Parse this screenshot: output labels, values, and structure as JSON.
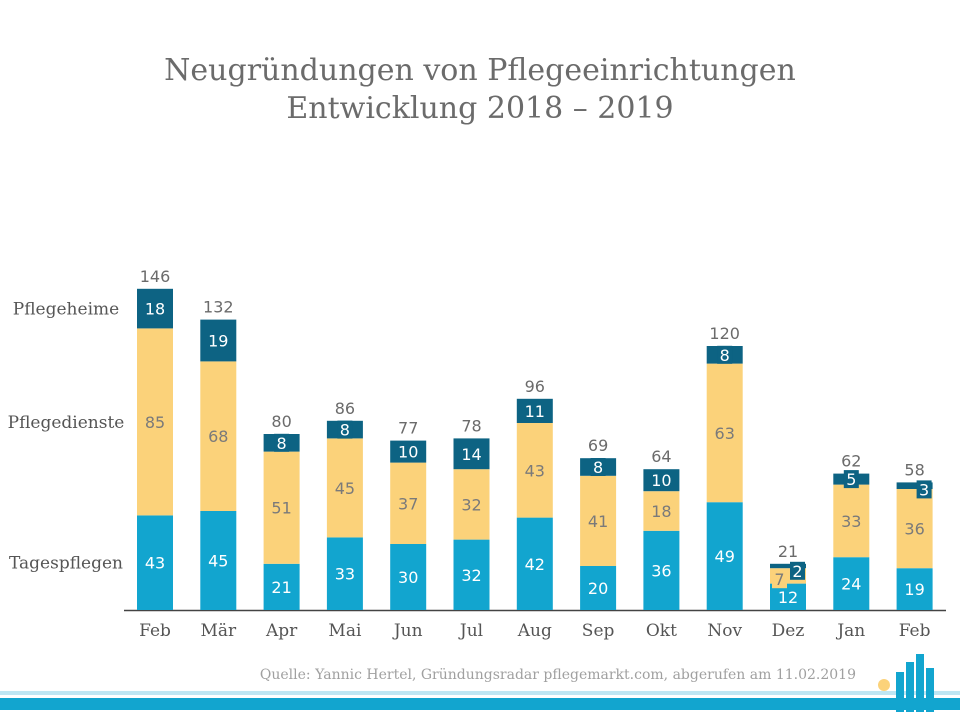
{
  "chart_data": {
    "type": "bar",
    "stacked": true,
    "title": "Neugründungen von Pflegeeinrichtungen",
    "subtitle": "Entwicklung 2018 – 2019",
    "categories": [
      "Feb",
      "Mär",
      "Apr",
      "Mai",
      "Jun",
      "Jul",
      "Aug",
      "Sep",
      "Okt",
      "Nov",
      "Dez",
      "Jan",
      "Feb"
    ],
    "series": [
      {
        "name": "Tagespflegen",
        "color": "#12a5cf",
        "label_color": "#ffffff",
        "values": [
          43,
          45,
          21,
          33,
          30,
          32,
          42,
          20,
          36,
          49,
          12,
          24,
          19
        ]
      },
      {
        "name": "Pflegedienste",
        "color": "#fbd27a",
        "label_color": "#7a7a7a",
        "values": [
          85,
          68,
          51,
          45,
          37,
          32,
          43,
          41,
          18,
          63,
          7,
          33,
          36
        ]
      },
      {
        "name": "Pflegeheime",
        "color": "#0d6383",
        "label_color": "#ffffff",
        "values": [
          18,
          19,
          8,
          8,
          10,
          14,
          11,
          8,
          10,
          8,
          2,
          5,
          3
        ]
      }
    ],
    "totals": [
      146,
      132,
      80,
      86,
      77,
      78,
      96,
      69,
      64,
      120,
      21,
      62,
      58
    ],
    "ylim": [
      0,
      160
    ],
    "legend": "left",
    "xlabel": "",
    "ylabel": ""
  },
  "source": "Quelle: Yannic Hertel, Gründungsradar pflegemarkt.com, abgerufen am 11.02.2019",
  "logo": {
    "colors": [
      "#12a5cf",
      "#fbd27a"
    ]
  }
}
